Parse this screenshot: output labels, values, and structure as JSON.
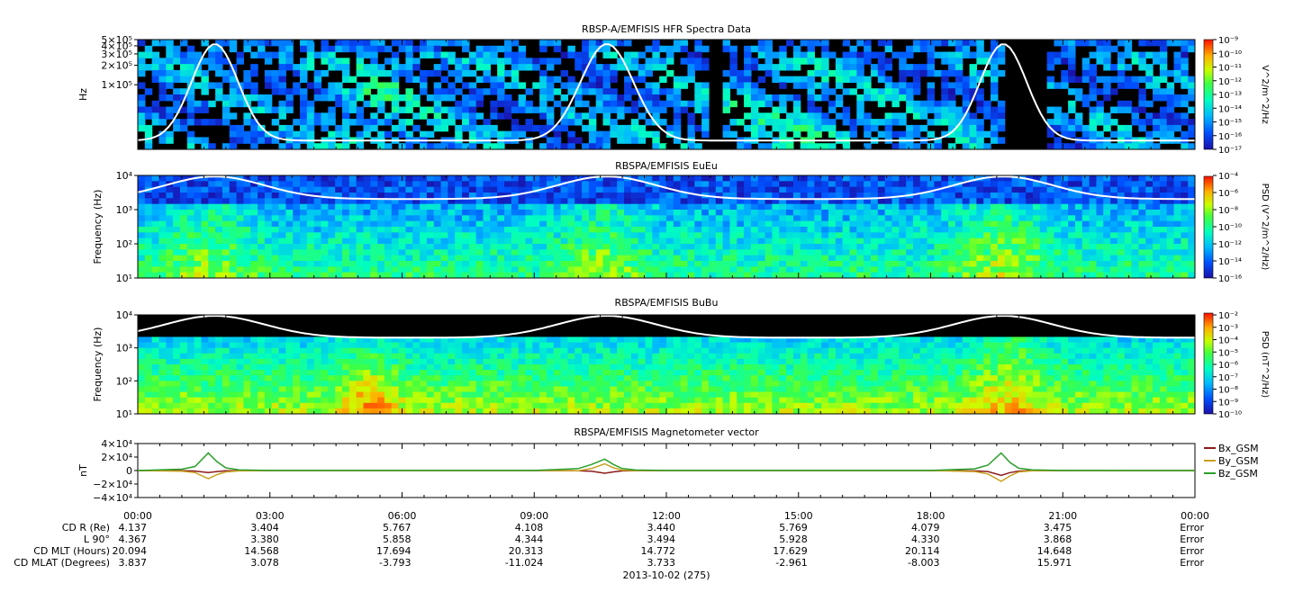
{
  "chart_data": [
    {
      "type": "heatmap",
      "title": "RBSP-A/EMFISIS  HFR Spectra Data",
      "ylabel": "Hz",
      "yscale": "log",
      "ytick_labels": [
        "5×10⁵",
        "4×10⁵",
        "3×10⁵",
        "2×10⁵",
        "1×10⁵"
      ],
      "yticks": [
        500000,
        400000,
        300000,
        200000,
        100000
      ],
      "ylim": [
        10000,
        500000
      ],
      "colorbar_label": "V^2/m^2/Hz",
      "colorbar_tick_labels": [
        "10⁻⁹",
        "10⁻¹⁰",
        "10⁻¹¹",
        "10⁻¹²",
        "10⁻¹³",
        "10⁻¹⁴",
        "10⁻¹⁵",
        "10⁻¹⁶",
        "10⁻¹⁷"
      ],
      "colorbar_range": [
        1e-17,
        1e-09
      ],
      "overlay_line": "white"
    },
    {
      "type": "heatmap",
      "title": "RBSPA/EMFISIS  EuEu",
      "ylabel": "Frequency (Hz)",
      "yscale": "log",
      "ytick_labels": [
        "10⁴",
        "10³",
        "10²",
        "10¹"
      ],
      "yticks": [
        10000,
        1000,
        100,
        10
      ],
      "ylim": [
        10,
        10000
      ],
      "colorbar_label": "PSD (V^2/m^2/Hz)",
      "colorbar_tick_labels": [
        "10⁻⁴",
        "10⁻⁶",
        "10⁻⁸",
        "10⁻¹⁰",
        "10⁻¹²",
        "10⁻¹⁴",
        "10⁻¹⁶"
      ],
      "colorbar_range": [
        1e-16,
        0.0001
      ],
      "overlay_line": "white"
    },
    {
      "type": "heatmap",
      "title": "RBSPA/EMFISIS  BuBu",
      "ylabel": "Frequency (Hz)",
      "yscale": "log",
      "ytick_labels": [
        "10⁴",
        "10³",
        "10²",
        "10¹"
      ],
      "yticks": [
        10000,
        1000,
        100,
        10
      ],
      "ylim": [
        10,
        10000
      ],
      "colorbar_label": "PSD (nT^2/Hz)",
      "colorbar_tick_labels": [
        "10⁻²",
        "10⁻³",
        "10⁻⁴",
        "10⁻⁵",
        "10⁻⁶",
        "10⁻⁷",
        "10⁻⁸",
        "10⁻⁹",
        "10⁻¹⁰"
      ],
      "colorbar_range": [
        1e-10,
        0.01
      ],
      "overlay_line": "white"
    },
    {
      "type": "line",
      "title": "RBSPA/EMFISIS  Magnetometer vector",
      "ylabel": "nT",
      "ytick_labels": [
        "4×10⁴",
        "2×10⁴",
        "0",
        "−2×10⁴",
        "−4×10⁴"
      ],
      "yticks": [
        40000,
        20000,
        0,
        -20000,
        -40000
      ],
      "ylim": [
        -40000,
        40000
      ],
      "legend_position": "right",
      "x": [
        0,
        1,
        1.3,
        1.6,
        1.8,
        2.0,
        2.3,
        3,
        9,
        10,
        10.3,
        10.6,
        10.8,
        11,
        11.3,
        12,
        18,
        19,
        19.3,
        19.6,
        19.8,
        20.0,
        20.3,
        21,
        24
      ],
      "series": [
        {
          "name": "Bx_GSM",
          "color": "#8b1a1a",
          "values": [
            0,
            -200,
            -800,
            -3000,
            -1500,
            -400,
            -100,
            0,
            0,
            -300,
            -1000,
            -4000,
            -2000,
            -500,
            -100,
            0,
            0,
            -500,
            -1500,
            -7000,
            -3000,
            -800,
            -150,
            0,
            0
          ]
        },
        {
          "name": "By_GSM",
          "color": "#c8a020",
          "values": [
            0,
            -1000,
            -3000,
            -12000,
            -6000,
            -2000,
            -500,
            0,
            0,
            -300,
            3000,
            10000,
            4000,
            500,
            -200,
            0,
            0,
            -1500,
            -5000,
            -16000,
            -8000,
            -2000,
            -400,
            0,
            0
          ]
        },
        {
          "name": "Bz_GSM",
          "color": "#2aa02a",
          "values": [
            0,
            2000,
            6000,
            26000,
            13000,
            4000,
            1000,
            200,
            200,
            3000,
            9000,
            17000,
            9000,
            3000,
            800,
            200,
            200,
            2500,
            8000,
            26000,
            12000,
            3500,
            900,
            200,
            0
          ]
        }
      ]
    }
  ],
  "x_axis": {
    "tick_labels": [
      "00:00",
      "03:00",
      "06:00",
      "09:00",
      "12:00",
      "15:00",
      "18:00",
      "21:00",
      "00:00"
    ],
    "hours": [
      0,
      3,
      6,
      9,
      12,
      15,
      18,
      21,
      24
    ],
    "date_label": "2013-10-02 (275)",
    "ephemeris": [
      {
        "label": "CD R (Re)",
        "values": [
          "4.137",
          "3.404",
          "5.767",
          "4.108",
          "3.440",
          "5.769",
          "4.079",
          "3.475",
          "Error"
        ]
      },
      {
        "label": "L 90°",
        "values": [
          "4.367",
          "3.380",
          "5.858",
          "4.344",
          "3.494",
          "5.928",
          "4.330",
          "3.868",
          "Error"
        ]
      },
      {
        "label": "CD MLT (Hours)",
        "values": [
          "20.094",
          "14.568",
          "17.694",
          "20.313",
          "14.772",
          "17.629",
          "20.114",
          "14.648",
          "Error"
        ]
      },
      {
        "label": "CD MLAT (Degrees)",
        "values": [
          "3.837",
          "3.078",
          "-3.793",
          "-11.024",
          "3.733",
          "-2.961",
          "-8.003",
          "15.971",
          "Error"
        ]
      }
    ]
  },
  "colors": {
    "spectrogram_background": "#000000",
    "overlay": "#ffffff"
  }
}
